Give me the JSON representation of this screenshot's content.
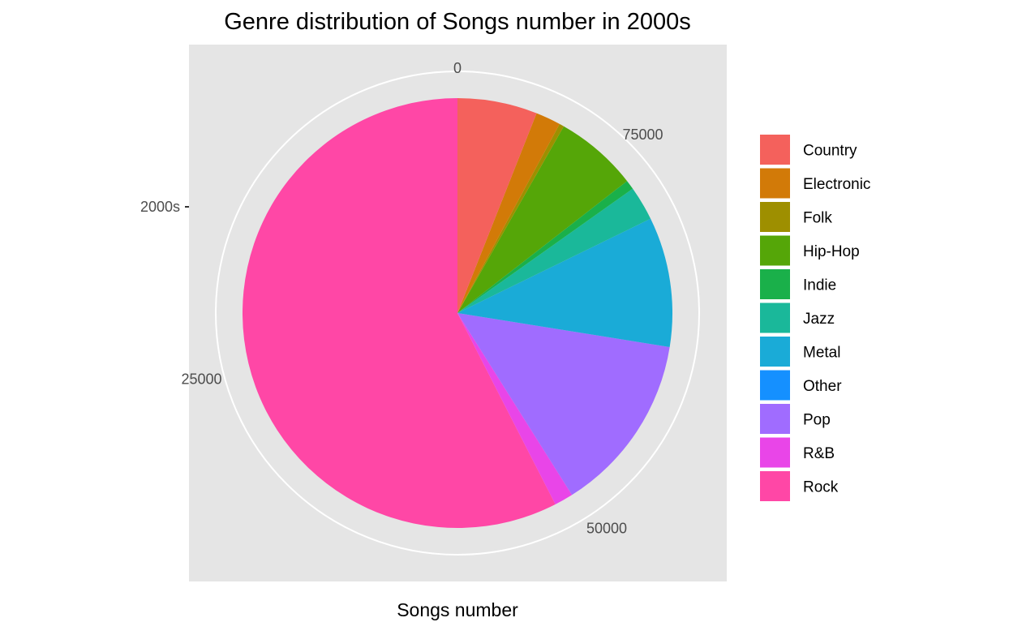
{
  "chart_data": {
    "type": "pie",
    "title": "Genre distribution of Songs number in 2000s",
    "xlabel": "Songs number",
    "ylabel": "",
    "category_label": "2000s",
    "radial_ticks": [
      "0",
      "25000",
      "50000",
      "75000"
    ],
    "tick_values": [
      0,
      25000,
      50000,
      75000
    ],
    "total": 85000,
    "legend_position": "right",
    "grid": true,
    "panel_background": "#e5e5e5",
    "categories": [
      "Country",
      "Electronic",
      "Folk",
      "Hip-Hop",
      "Indie",
      "Jazz",
      "Metal",
      "Other",
      "Pop",
      "R&B",
      "Rock"
    ],
    "values": [
      5100,
      1600,
      300,
      5300,
      600,
      2200,
      8300,
      0,
      11500,
      1200,
      48900
    ],
    "colors": [
      "#F8766D",
      "#D89000",
      "#A3A500",
      "#39B600",
      "#00BF7D",
      "#00BFC4",
      "#00B0F6",
      "#9590FF",
      "#E76BF3",
      "#FF62BC",
      "#FF66A8"
    ],
    "slice_colors": [
      "#F4615C",
      "#D27A08",
      "#9E8F00",
      "#55A608",
      "#1AB04A",
      "#1AB89A",
      "#1AABD7",
      "#1590FF",
      "#A06CFF",
      "#E945E8",
      "#FF47A6"
    ]
  }
}
